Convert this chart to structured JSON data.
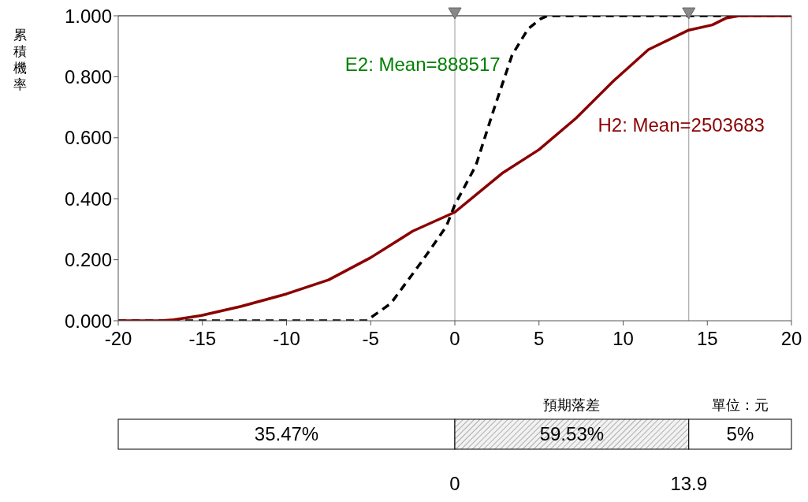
{
  "chart_data": {
    "type": "line",
    "ylabel": "累積機率",
    "xlim": [
      -20,
      20
    ],
    "xticks": [
      -20,
      -15,
      -10,
      -5,
      0,
      5,
      10,
      15,
      20
    ],
    "ylim": [
      0,
      1
    ],
    "yticks": [
      {
        "value": 0,
        "label": "0.000"
      },
      {
        "value": 0.2,
        "label": "0.200"
      },
      {
        "value": 0.4,
        "label": "0.400"
      },
      {
        "value": 0.6,
        "label": "0.600"
      },
      {
        "value": 0.8,
        "label": "0.800"
      },
      {
        "value": 1,
        "label": "1.000"
      }
    ],
    "grid": false,
    "legend": false,
    "marker": "none",
    "series": [
      {
        "name": "E2: Mean=888517",
        "color": "#000000",
        "line_style": "dashed",
        "x": [
          -20,
          -5.2,
          -5,
          -3.8,
          -1.9,
          -0.5,
          0,
          1.25,
          2.3,
          3.4,
          4.35,
          5.1,
          5.5,
          20
        ],
        "values": [
          0,
          0,
          0.01,
          0.057,
          0.199,
          0.31,
          0.38,
          0.509,
          0.69,
          0.871,
          0.957,
          0.99,
          1,
          1
        ]
      },
      {
        "name": "H2: Mean=2503683",
        "color": "#8b0000",
        "line_style": "solid",
        "x": [
          -20,
          -17.5,
          -16.7,
          -15,
          -12.7,
          -10,
          -7.5,
          -5,
          -2.5,
          0,
          2.8,
          5,
          7.2,
          9.4,
          11.5,
          13.9,
          15.3,
          16.1,
          16.9,
          20
        ],
        "values": [
          0,
          0,
          0.003,
          0.018,
          0.047,
          0.088,
          0.134,
          0.207,
          0.294,
          0.356,
          0.483,
          0.561,
          0.664,
          0.785,
          0.889,
          0.953,
          0.97,
          0.992,
          1,
          1
        ]
      }
    ],
    "ref_lines": [
      {
        "axis": "x",
        "value": 0,
        "color": "#999999"
      },
      {
        "axis": "x",
        "value": 13.9,
        "color": "#999999"
      }
    ],
    "annotations": [
      "預期落差",
      "單位：元",
      "35.47%",
      "59.53%",
      "5%",
      "0",
      "13.9"
    ]
  }
}
